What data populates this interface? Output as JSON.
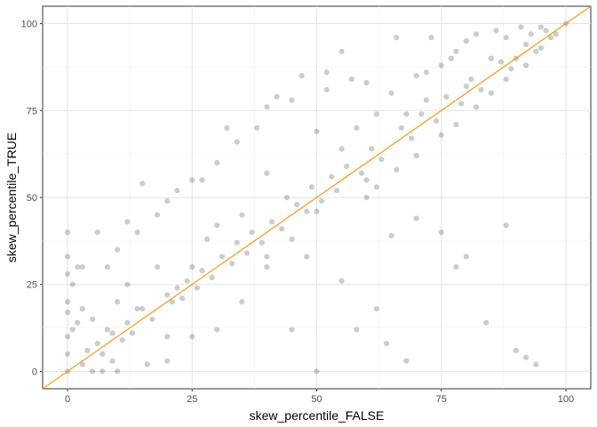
{
  "chart_data": {
    "type": "scatter",
    "title": "",
    "xlabel": "skew_percentile_FALSE",
    "ylabel": "skew_percentile_TRUE",
    "xlim": [
      -5,
      105
    ],
    "ylim": [
      -5,
      105
    ],
    "x_ticks": [
      0,
      25,
      50,
      75,
      100
    ],
    "y_ticks": [
      0,
      25,
      50,
      75,
      100
    ],
    "x_tick_labels": [
      "0",
      "25",
      "50",
      "75",
      "100"
    ],
    "y_tick_labels": [
      "0",
      "25",
      "50",
      "75",
      "100"
    ],
    "grid": true,
    "legend": "none",
    "reference_line": {
      "type": "identity",
      "slope": 1,
      "intercept": 0,
      "color": "#f5a01e"
    },
    "point_color": "#000000",
    "point_alpha": 0.2,
    "series": [
      {
        "points": [
          [
            0,
            0
          ],
          [
            0,
            5
          ],
          [
            0,
            10
          ],
          [
            0,
            17
          ],
          [
            0,
            20
          ],
          [
            0,
            33
          ],
          [
            0,
            40
          ],
          [
            1,
            25
          ],
          [
            2,
            14
          ],
          [
            3,
            30
          ],
          [
            5,
            0
          ],
          [
            5,
            15
          ],
          [
            7,
            0
          ],
          [
            8,
            12
          ],
          [
            8,
            30
          ],
          [
            10,
            0
          ],
          [
            10,
            20
          ],
          [
            10,
            35
          ],
          [
            12,
            25
          ],
          [
            12,
            43
          ],
          [
            14,
            18
          ],
          [
            14,
            40
          ],
          [
            15,
            54
          ],
          [
            16,
            2
          ],
          [
            18,
            30
          ],
          [
            18,
            45
          ],
          [
            20,
            3
          ],
          [
            20,
            10
          ],
          [
            20,
            49
          ],
          [
            22,
            52
          ],
          [
            25,
            10
          ],
          [
            25,
            30
          ],
          [
            25,
            55
          ],
          [
            27,
            55
          ],
          [
            28,
            38
          ],
          [
            30,
            12
          ],
          [
            30,
            60
          ],
          [
            30,
            42
          ],
          [
            32,
            70
          ],
          [
            34,
            66
          ],
          [
            35,
            20
          ],
          [
            35,
            45
          ],
          [
            38,
            70
          ],
          [
            40,
            30
          ],
          [
            40,
            57
          ],
          [
            40,
            76
          ],
          [
            42,
            79
          ],
          [
            44,
            50
          ],
          [
            45,
            12
          ],
          [
            45,
            78
          ],
          [
            47,
            85
          ],
          [
            48,
            33
          ],
          [
            50,
            0
          ],
          [
            50,
            46
          ],
          [
            50,
            69
          ],
          [
            52,
            81
          ],
          [
            52,
            86
          ],
          [
            55,
            26
          ],
          [
            55,
            64
          ],
          [
            55,
            92
          ],
          [
            57,
            84
          ],
          [
            58,
            12
          ],
          [
            58,
            70
          ],
          [
            60,
            55
          ],
          [
            60,
            83
          ],
          [
            62,
            18
          ],
          [
            62,
            74
          ],
          [
            64,
            8
          ],
          [
            65,
            39
          ],
          [
            65,
            80
          ],
          [
            66,
            96
          ],
          [
            68,
            3
          ],
          [
            68,
            74
          ],
          [
            70,
            44
          ],
          [
            70,
            85
          ],
          [
            72,
            86
          ],
          [
            73,
            96
          ],
          [
            75,
            40
          ],
          [
            75,
            88
          ],
          [
            77,
            90
          ],
          [
            78,
            30
          ],
          [
            78,
            92
          ],
          [
            80,
            33
          ],
          [
            80,
            82
          ],
          [
            80,
            95
          ],
          [
            82,
            97
          ],
          [
            84,
            14
          ],
          [
            85,
            90
          ],
          [
            86,
            98
          ],
          [
            88,
            42
          ],
          [
            88,
            96
          ],
          [
            90,
            6
          ],
          [
            90,
            90
          ],
          [
            91,
            99
          ],
          [
            92,
            4
          ],
          [
            93,
            97
          ],
          [
            94,
            2
          ],
          [
            95,
            99
          ],
          [
            97,
            96
          ],
          [
            100,
            100
          ],
          [
            20,
            22
          ],
          [
            21,
            20
          ],
          [
            22,
            24
          ],
          [
            23,
            21
          ],
          [
            24,
            26
          ],
          [
            26,
            24
          ],
          [
            27,
            29
          ],
          [
            29,
            27
          ],
          [
            31,
            33
          ],
          [
            33,
            31
          ],
          [
            34,
            37
          ],
          [
            36,
            34
          ],
          [
            37,
            40
          ],
          [
            39,
            37
          ],
          [
            41,
            43
          ],
          [
            43,
            41
          ],
          [
            46,
            48
          ],
          [
            48,
            46
          ],
          [
            49,
            53
          ],
          [
            51,
            49
          ],
          [
            53,
            56
          ],
          [
            54,
            52
          ],
          [
            56,
            59
          ],
          [
            59,
            57
          ],
          [
            61,
            64
          ],
          [
            63,
            61
          ],
          [
            67,
            70
          ],
          [
            69,
            67
          ],
          [
            71,
            74
          ],
          [
            74,
            72
          ],
          [
            76,
            79
          ],
          [
            79,
            77
          ],
          [
            81,
            84
          ],
          [
            83,
            81
          ],
          [
            87,
            89
          ],
          [
            89,
            87
          ],
          [
            92,
            94
          ],
          [
            94,
            92
          ],
          [
            96,
            98
          ],
          [
            98,
            97
          ],
          [
            12,
            14
          ],
          [
            13,
            11
          ],
          [
            15,
            18
          ],
          [
            17,
            15
          ],
          [
            6,
            8
          ],
          [
            7,
            5
          ],
          [
            4,
            6
          ],
          [
            3,
            2
          ],
          [
            9,
            11
          ],
          [
            11,
            9
          ],
          [
            2,
            30
          ],
          [
            1,
            12
          ],
          [
            0,
            28
          ],
          [
            3,
            18
          ],
          [
            6,
            40
          ],
          [
            9,
            3
          ],
          [
            40,
            33
          ],
          [
            45,
            38
          ],
          [
            60,
            50
          ],
          [
            62,
            53
          ],
          [
            66,
            58
          ],
          [
            70,
            62
          ],
          [
            72,
            78
          ],
          [
            75,
            68
          ],
          [
            78,
            71
          ],
          [
            82,
            76
          ],
          [
            85,
            80
          ],
          [
            88,
            84
          ],
          [
            92,
            88
          ],
          [
            95,
            93
          ]
        ]
      }
    ]
  }
}
